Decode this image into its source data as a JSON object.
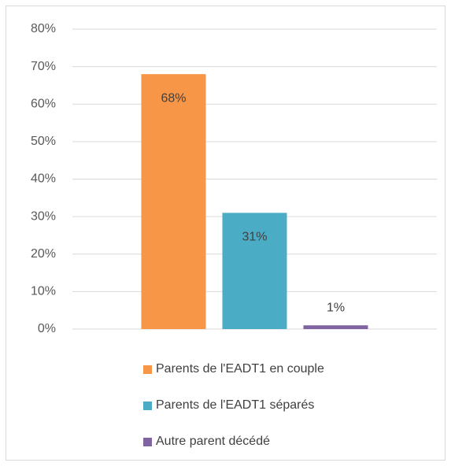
{
  "chart_data": {
    "type": "bar",
    "categories": [
      null
    ],
    "series": [
      {
        "name": "Parents de l'EADT1 en couple",
        "color": "#f79646",
        "values": [
          68
        ],
        "value_labels": [
          "68%"
        ]
      },
      {
        "name": "Parents de l'EADT1 séparés",
        "color": "#4bacc6",
        "values": [
          31
        ],
        "value_labels": [
          "31%"
        ]
      },
      {
        "name": "Autre parent décédé",
        "color": "#8064a2",
        "values": [
          1
        ],
        "value_labels": [
          "1%"
        ]
      }
    ],
    "ylim": [
      0,
      80
    ],
    "yticks": [
      {
        "value": 0,
        "label": "0%"
      },
      {
        "value": 10,
        "label": "10%"
      },
      {
        "value": 20,
        "label": "20%"
      },
      {
        "value": 30,
        "label": "30%"
      },
      {
        "value": 40,
        "label": "40%"
      },
      {
        "value": 50,
        "label": "50%"
      },
      {
        "value": 60,
        "label": "60%"
      },
      {
        "value": 70,
        "label": "70%"
      },
      {
        "value": 80,
        "label": "80%"
      }
    ],
    "grid": true,
    "legend": "bottom"
  }
}
